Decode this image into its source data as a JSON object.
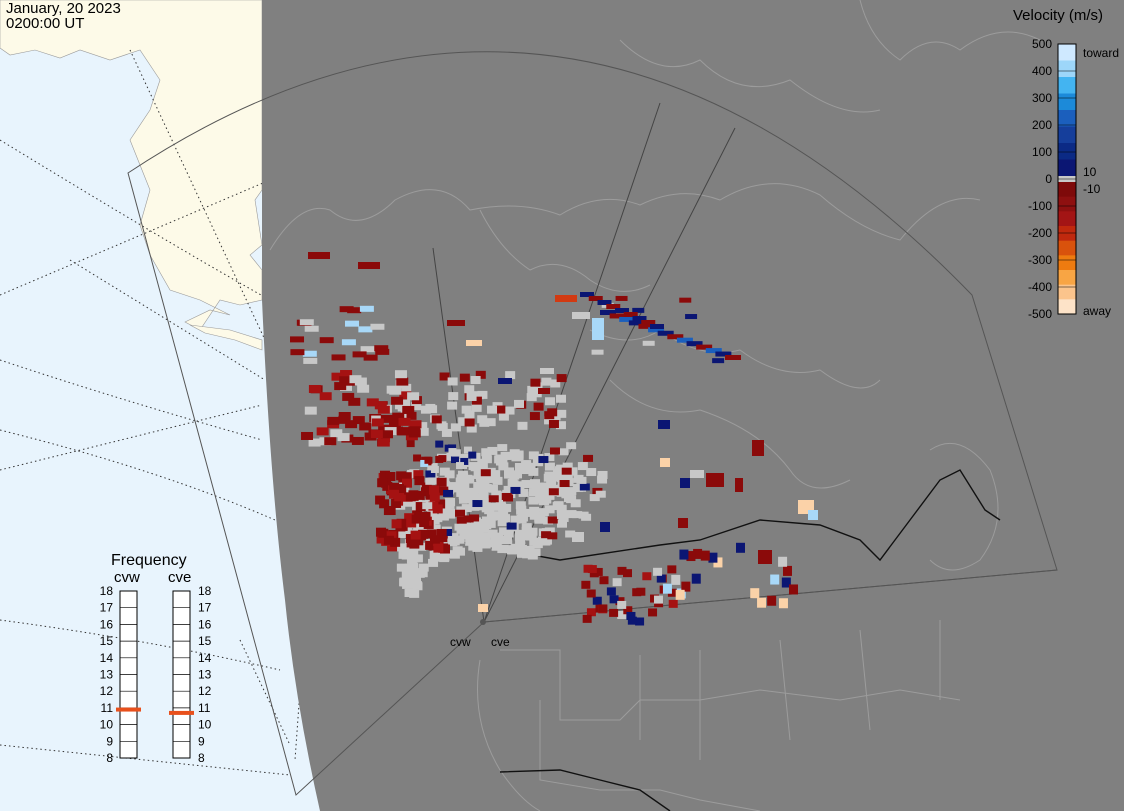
{
  "header": {
    "date": "January, 20 2023",
    "time": "0200:00 UT"
  },
  "colorbar": {
    "title": "Velocity (m/s)",
    "ticks": [
      "500",
      "400",
      "300",
      "200",
      "100",
      "0",
      "-100",
      "-200",
      "-300",
      "-400",
      "-500"
    ],
    "toward_label": "toward",
    "away_label": "away",
    "near_zero_pos": "10",
    "near_zero_neg": "-10",
    "colors": [
      "#cfe9ff",
      "#9dd6f9",
      "#43b4f1",
      "#1c8ad9",
      "#1b5fbd",
      "#153e9b",
      "#0b2a85",
      "#0b1673",
      "#7e0a0a",
      "#8e1010",
      "#a31515",
      "#c0290e",
      "#d9520c",
      "#ee7b10",
      "#f8a544",
      "#fbc48c",
      "#fde3c8"
    ]
  },
  "frequency_panel": {
    "title": "Frequency",
    "radars": [
      {
        "name": "cvw",
        "freq_mhz": 10.9
      },
      {
        "name": "cve",
        "freq_mhz": 10.7
      }
    ],
    "scale": [
      "18",
      "17",
      "16",
      "15",
      "14",
      "13",
      "12",
      "11",
      "10",
      "9",
      "8"
    ],
    "marker_color": "#e8501c"
  },
  "radar_sites": [
    {
      "name": "cvw"
    },
    {
      "name": "cve"
    }
  ],
  "map_colors": {
    "ocean": "#e8f4fd",
    "land": "#fdfae8",
    "night": "#808080",
    "ground_scatter": "#c8c8c8"
  }
}
